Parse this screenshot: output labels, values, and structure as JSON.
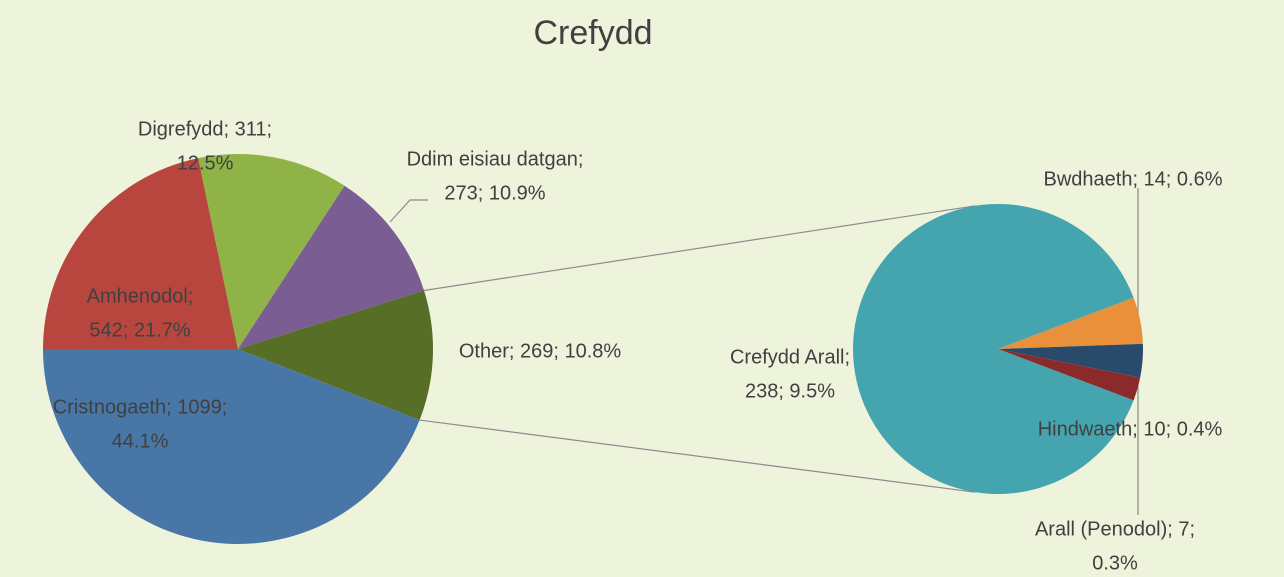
{
  "chart_data": {
    "type": "pie-of-pie",
    "title": "Crefydd",
    "pies": [
      {
        "values": [
          542,
          311,
          273,
          269,
          1099
        ],
        "percents": [
          21.7,
          12.5,
          10.9,
          10.8,
          44.1
        ],
        "value_labels": [
          [
            "Amhenodol;",
            "542; 21.7%"
          ],
          [
            "Digrefydd; 311;",
            "12.5%"
          ],
          [
            "Ddim eisiau datgan;",
            "273; 10.9%"
          ],
          [
            "Other; 269; 10.8%"
          ],
          [
            "Cristnogaeth; 1099;",
            "44.1%"
          ]
        ],
        "colors": [
          "#b8463f",
          "#8fb347",
          "#7a5d92",
          "#576e26",
          "#4876a6"
        ]
      },
      {
        "values": [
          14,
          10,
          7,
          238
        ],
        "percents": [
          0.6,
          0.4,
          0.3,
          9.5
        ],
        "value_labels": [
          [
            "Bwdhaeth; 14; 0.6%"
          ],
          [
            "Hindwaeth; 10; 0.4%"
          ],
          [
            "Arall (Penodol); 7;",
            "0.3%"
          ],
          [
            "Crefydd Arall;",
            "238; 9.5%"
          ]
        ],
        "colors": [
          "#e8913a",
          "#2a4a6b",
          "#8a2a2a",
          "#45a5ae"
        ]
      }
    ]
  }
}
